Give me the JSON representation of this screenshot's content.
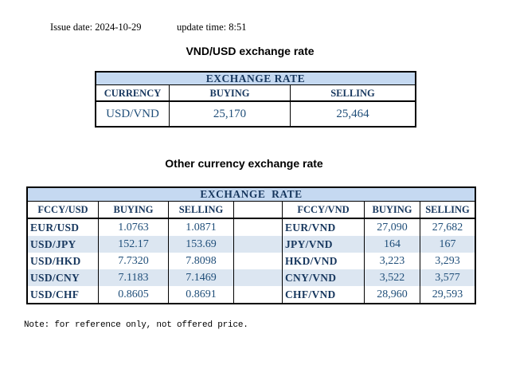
{
  "header": {
    "issue_date": "Issue date: 2024-10-29",
    "update_time": "update time: 8:51"
  },
  "usd_table": {
    "title": "VND/USD exchange rate",
    "banner": "EXCHANGE RATE",
    "columns": [
      "CURRENCY",
      "BUYING",
      "SELLING"
    ],
    "rows": [
      {
        "currency": "USD/VND",
        "buying": "25,170",
        "selling": "25,464"
      }
    ]
  },
  "other_table": {
    "title": "Other currency exchange rate",
    "banner": "EXCHANGE  RATE",
    "left": {
      "columns": [
        "FCCY/USD",
        "BUYING",
        "SELLING"
      ],
      "rows": [
        {
          "pair": "EUR/USD",
          "buying": "1.0763",
          "selling": "1.0871"
        },
        {
          "pair": "USD/JPY",
          "buying": "152.17",
          "selling": "153.69"
        },
        {
          "pair": "USD/HKD",
          "buying": "7.7320",
          "selling": "7.8098"
        },
        {
          "pair": "USD/CNY",
          "buying": "7.1183",
          "selling": "7.1469"
        },
        {
          "pair": "USD/CHF",
          "buying": "0.8605",
          "selling": "0.8691"
        }
      ]
    },
    "right": {
      "columns": [
        "FCCY/VND",
        "BUYING",
        "SELLING"
      ],
      "rows": [
        {
          "pair": "EUR/VND",
          "buying": "27,090",
          "selling": "27,682"
        },
        {
          "pair": "JPY/VND",
          "buying": "164",
          "selling": "167"
        },
        {
          "pair": "HKD/VND",
          "buying": "3,223",
          "selling": "3,293"
        },
        {
          "pair": "CNY/VND",
          "buying": "3,522",
          "selling": "3,577"
        },
        {
          "pair": "CHF/VND",
          "buying": "28,960",
          "selling": "29,593"
        }
      ]
    }
  },
  "note": "Note: for reference only, not offered price.",
  "colors": {
    "banner_bg": "#c5d9f1",
    "stripe_bg": "#dce6f1",
    "header_text": "#17375e",
    "value_text": "#1f4e79",
    "border_c": "#000000",
    "page_bg": "#ffffff",
    "title_text": "#000000"
  }
}
